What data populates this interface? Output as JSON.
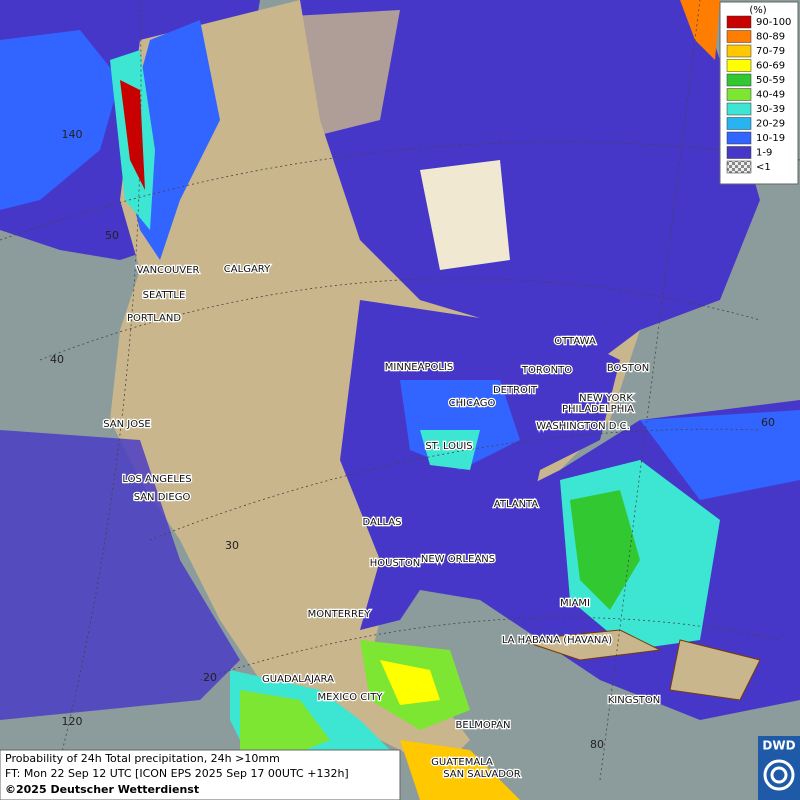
{
  "legend": {
    "title": "(%)",
    "items": [
      {
        "label": "90-100",
        "color": "#c80000"
      },
      {
        "label": "80-89",
        "color": "#ff7d00"
      },
      {
        "label": "70-79",
        "color": "#ffc800"
      },
      {
        "label": "60-69",
        "color": "#ffff00"
      },
      {
        "label": "50-59",
        "color": "#32c832"
      },
      {
        "label": "40-49",
        "color": "#7de632"
      },
      {
        "label": "30-39",
        "color": "#3ce6d2"
      },
      {
        "label": "20-29",
        "color": "#28b4f0"
      },
      {
        "label": "10-19",
        "color": "#3264ff"
      },
      {
        "label": "1-9",
        "color": "#4637c8"
      },
      {
        "label": "<1",
        "color": "checker"
      }
    ]
  },
  "cities": [
    "VANCOUVER",
    "CALGARY",
    "SEATTLE",
    "PORTLAND",
    "MINNEAPOLIS",
    "OTTAWA",
    "TORONTO",
    "BOSTON",
    "DETROIT",
    "CHICAGO",
    "NEW YORK",
    "PHILADELPHIA",
    "WASHINGTON D.C.",
    "SAN JOSE",
    "ST. LOUIS",
    "LOS ANGELES",
    "SAN DIEGO",
    "ATLANTA",
    "DALLAS",
    "HOUSTON",
    "NEW ORLEANS",
    "MIAMI",
    "MONTERREY",
    "LA HABANA (HAVANA)",
    "GUADALAJARA",
    "MEXICO CITY",
    "KINGSTON",
    "BELMOPAN",
    "GUATEMALA",
    "SAN SALVADOR"
  ],
  "grid_labels": [
    "140",
    "50",
    "40",
    "30",
    "20",
    "120",
    "60",
    "80"
  ],
  "footer": {
    "line1": "Probability of 24h Total precipitation, 24h >10mm",
    "line2": "FT: Mon 22 Sep 12 UTC [ICON EPS 2025 Sep 17 00UTC +132h]",
    "line3": "©2025 Deutscher Wetterdienst"
  },
  "logo": "DWD"
}
